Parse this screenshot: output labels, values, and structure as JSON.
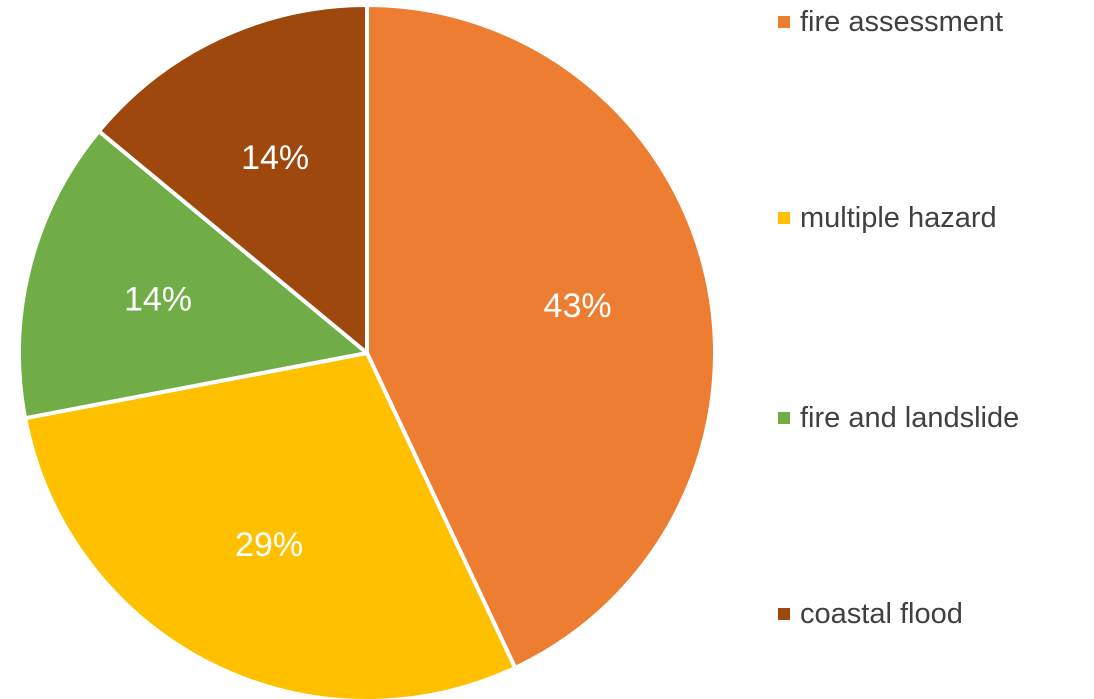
{
  "chart_data": {
    "type": "pie",
    "categories": [
      "fire assessment",
      "multiple hazard",
      "fire and landslide",
      "coastal flood"
    ],
    "values": [
      43,
      29,
      14,
      14
    ],
    "data_labels": [
      "43%",
      "29%",
      "14%",
      "14%"
    ],
    "colors": [
      "#ED7D31",
      "#FFC000",
      "#70AD47",
      "#9E480E"
    ],
    "start_angle": "12 o'clock",
    "direction": "clockwise",
    "legend_position": "right",
    "title": "",
    "unit": "%"
  }
}
